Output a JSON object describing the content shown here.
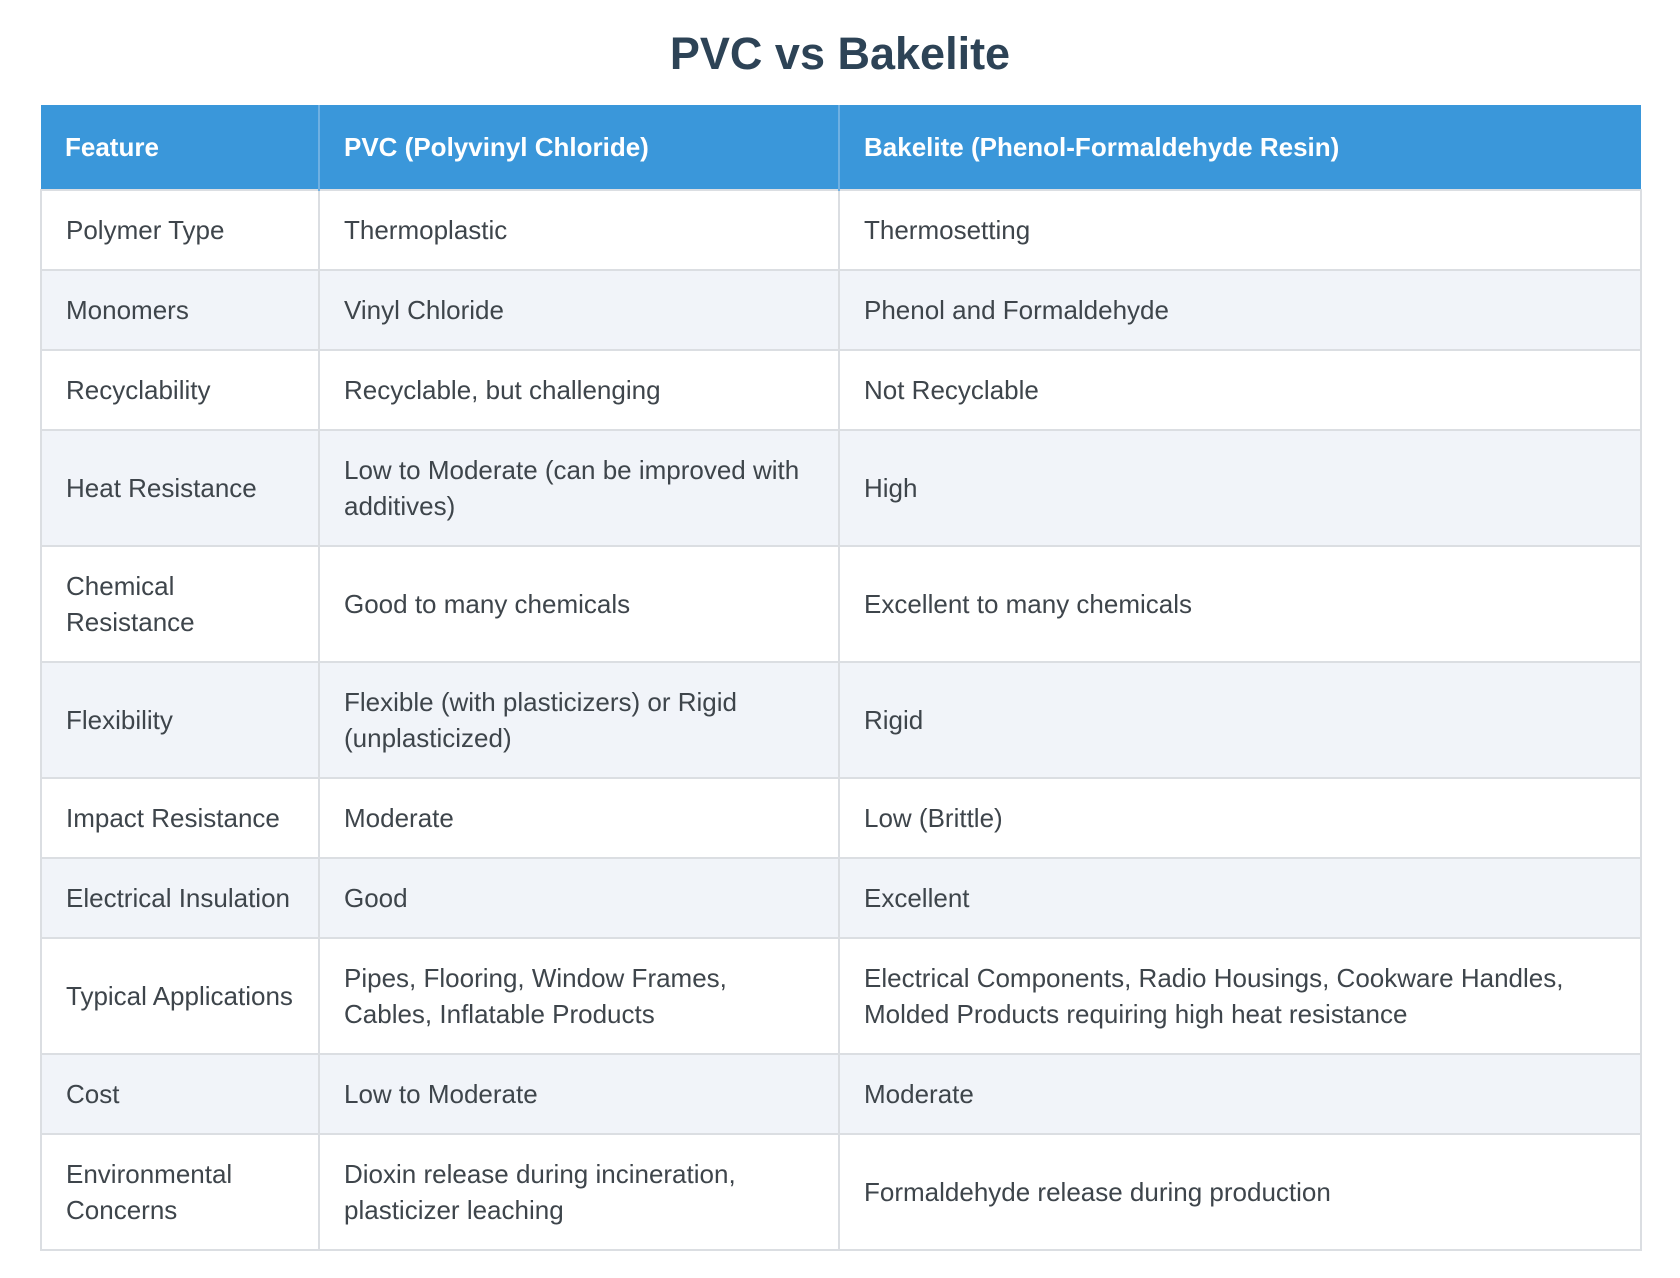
{
  "title": "PVC vs Bakelite",
  "table": {
    "headers": [
      "Feature",
      "PVC (Polyvinyl Chloride)",
      "Bakelite (Phenol-Formaldehyde Resin)"
    ],
    "rows": [
      [
        "Polymer Type",
        "Thermoplastic",
        "Thermosetting"
      ],
      [
        "Monomers",
        "Vinyl Chloride",
        "Phenol and Formaldehyde"
      ],
      [
        "Recyclability",
        "Recyclable, but challenging",
        "Not Recyclable"
      ],
      [
        "Heat Resistance",
        "Low to Moderate (can be improved with additives)",
        "High"
      ],
      [
        "Chemical Resistance",
        "Good to many chemicals",
        "Excellent to many chemicals"
      ],
      [
        "Flexibility",
        "Flexible (with plasticizers) or Rigid (unplasticized)",
        "Rigid"
      ],
      [
        "Impact Resistance",
        "Moderate",
        "Low (Brittle)"
      ],
      [
        "Electrical Insulation",
        "Good",
        "Excellent"
      ],
      [
        "Typical Applications",
        "Pipes, Flooring, Window Frames, Cables, Inflatable Products",
        "Electrical Components, Radio Housings, Cookware Handles, Molded Products requiring high heat resistance"
      ],
      [
        "Cost",
        "Low to Moderate",
        "Moderate"
      ],
      [
        "Environmental Concerns",
        "Dioxin release during incineration, plasticizer leaching",
        "Formaldehyde release during production"
      ]
    ]
  },
  "colors": {
    "title_text": "#2d4356",
    "header_bg": "#3a97da",
    "header_text": "#ffffff",
    "body_text": "#3e454b",
    "row_alt_bg": "#f1f4f9",
    "border": "#dbdee2"
  }
}
